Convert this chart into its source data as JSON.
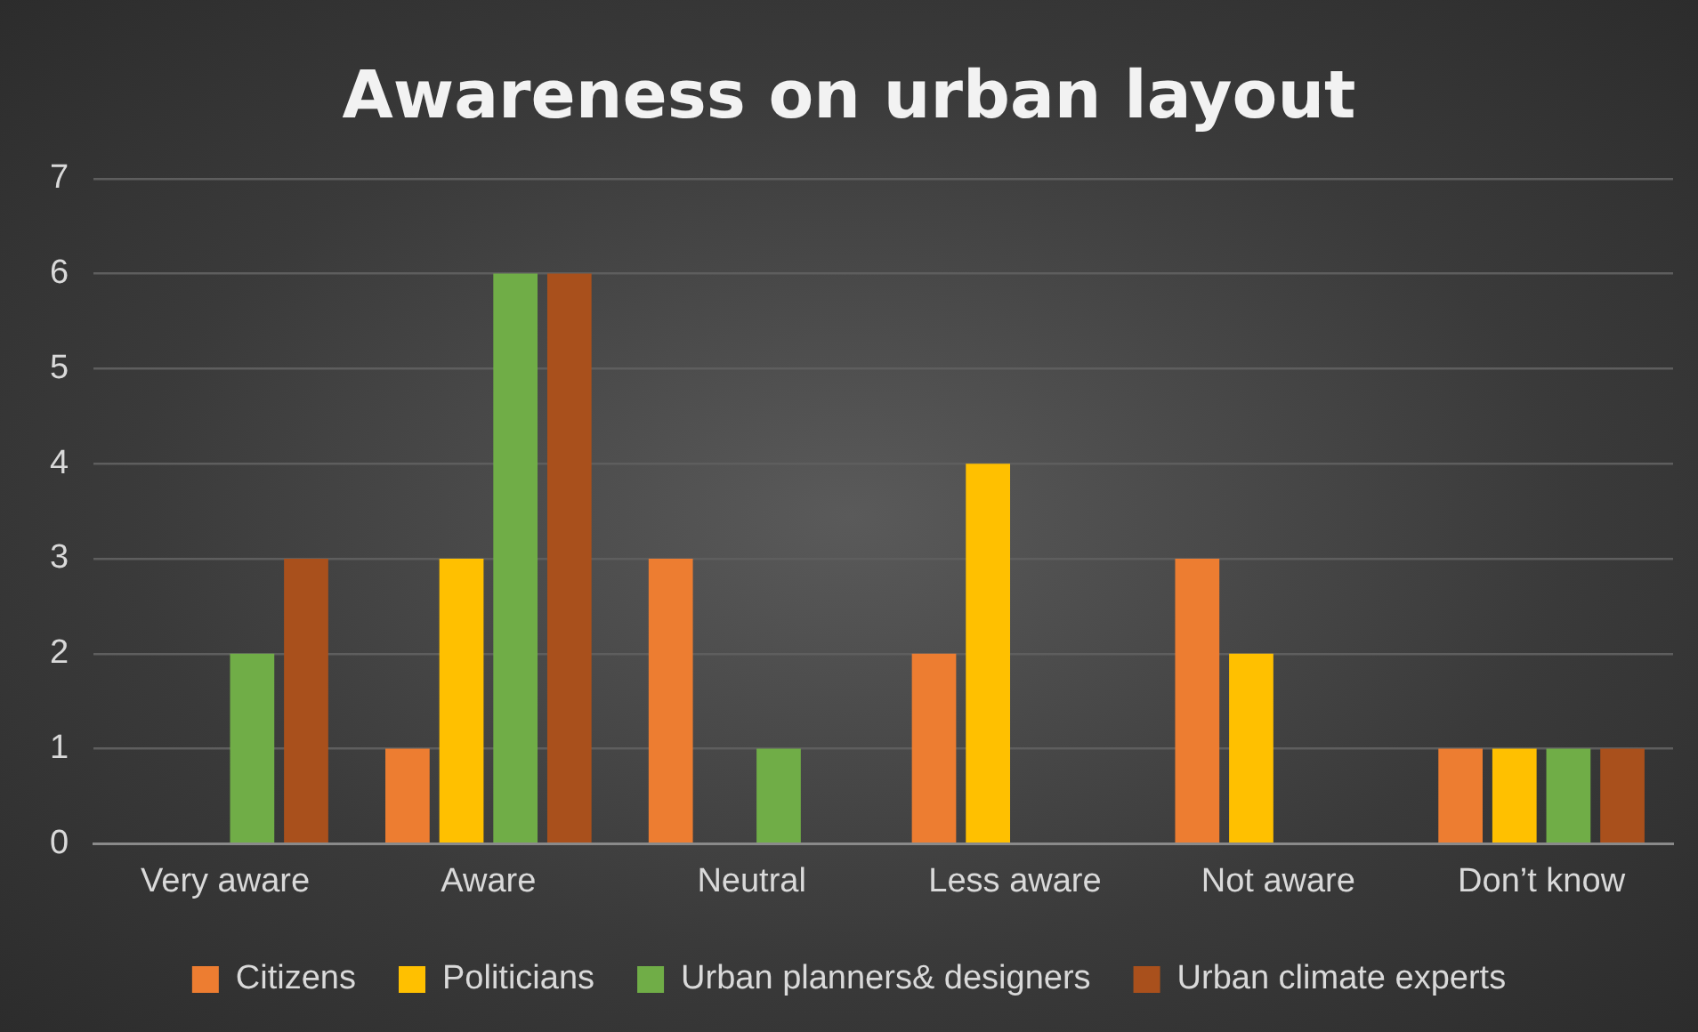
{
  "chart_data": {
    "type": "bar",
    "title": "Awareness on urban layout",
    "categories": [
      "Very aware",
      "Aware",
      "Neutral",
      "Less aware",
      "Not aware",
      "Don’t know"
    ],
    "series": [
      {
        "name": "Citizens",
        "color": "#ed7d31",
        "values": [
          0,
          1,
          3,
          2,
          3,
          1
        ]
      },
      {
        "name": "Politicians",
        "color": "#ffc000",
        "values": [
          0,
          3,
          0,
          4,
          2,
          1
        ]
      },
      {
        "name": "Urban planners& designers",
        "color": "#70ad47",
        "values": [
          2,
          6,
          1,
          0,
          0,
          1
        ]
      },
      {
        "name": "Urban climate experts",
        "color": "#a9501c",
        "values": [
          3,
          6,
          0,
          0,
          0,
          1
        ]
      }
    ],
    "ylim": [
      0,
      7
    ],
    "yticks": [
      0,
      1,
      2,
      3,
      4,
      5,
      6,
      7
    ],
    "grid": "y",
    "legend": "bottom"
  }
}
